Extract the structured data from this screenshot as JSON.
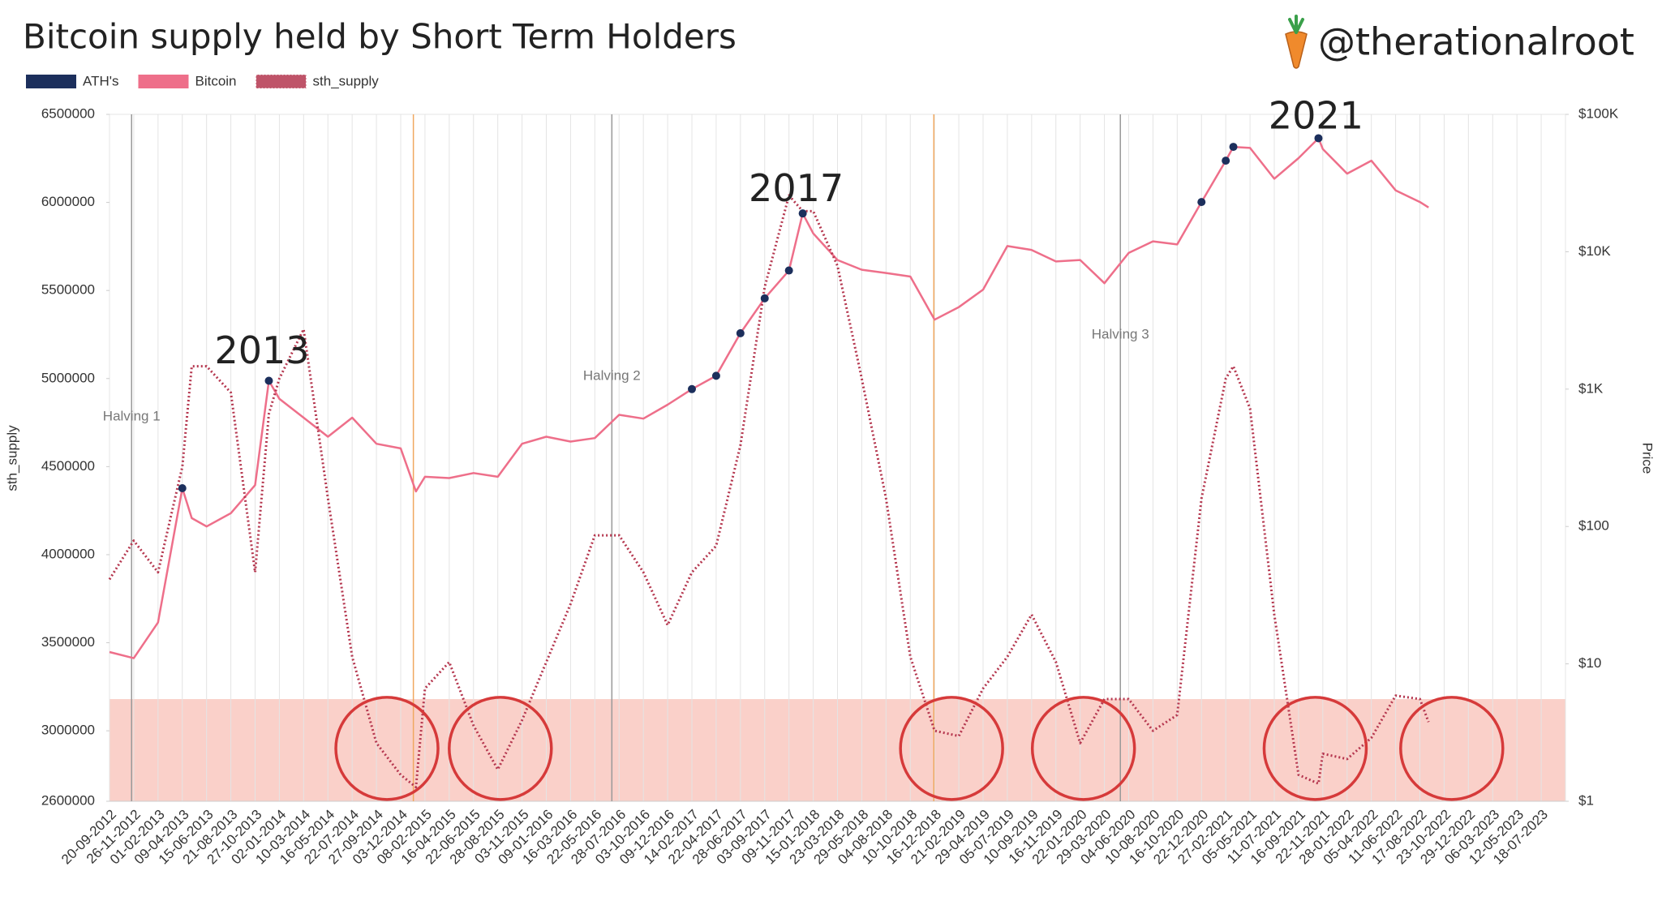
{
  "chart_data": {
    "type": "line",
    "title": "Bitcoin supply held by Short Term Holders",
    "brand": "@therationalroot",
    "y_label": "sth_supply",
    "y2_label": "Price",
    "xlim": [
      "2012-09-20",
      "2023-09-23"
    ],
    "xticks": [
      {
        "value": "2012-09-20",
        "label": "20-09-2012"
      },
      {
        "value": "2012-11-26",
        "label": "26-11-2012"
      },
      {
        "value": "2013-02-01",
        "label": "01-02-2013"
      },
      {
        "value": "2013-04-09",
        "label": "09-04-2013"
      },
      {
        "value": "2013-06-15",
        "label": "15-06-2013"
      },
      {
        "value": "2013-08-21",
        "label": "21-08-2013"
      },
      {
        "value": "2013-10-27",
        "label": "27-10-2013"
      },
      {
        "value": "2014-01-02",
        "label": "02-01-2014"
      },
      {
        "value": "2014-03-10",
        "label": "10-03-2014"
      },
      {
        "value": "2014-05-16",
        "label": "16-05-2014"
      },
      {
        "value": "2014-07-22",
        "label": "22-07-2014"
      },
      {
        "value": "2014-09-27",
        "label": "27-09-2014"
      },
      {
        "value": "2014-12-03",
        "label": "03-12-2014"
      },
      {
        "value": "2015-02-08",
        "label": "08-02-2015"
      },
      {
        "value": "2015-04-16",
        "label": "16-04-2015"
      },
      {
        "value": "2015-06-22",
        "label": "22-06-2015"
      },
      {
        "value": "2015-08-28",
        "label": "28-08-2015"
      },
      {
        "value": "2015-11-03",
        "label": "03-11-2015"
      },
      {
        "value": "2016-01-09",
        "label": "09-01-2016"
      },
      {
        "value": "2016-03-16",
        "label": "16-03-2016"
      },
      {
        "value": "2016-05-22",
        "label": "22-05-2016"
      },
      {
        "value": "2016-07-28",
        "label": "28-07-2016"
      },
      {
        "value": "2016-10-03",
        "label": "03-10-2016"
      },
      {
        "value": "2016-12-09",
        "label": "09-12-2016"
      },
      {
        "value": "2017-02-14",
        "label": "14-02-2017"
      },
      {
        "value": "2017-04-22",
        "label": "22-04-2017"
      },
      {
        "value": "2017-06-28",
        "label": "28-06-2017"
      },
      {
        "value": "2017-09-03",
        "label": "03-09-2017"
      },
      {
        "value": "2017-11-09",
        "label": "09-11-2017"
      },
      {
        "value": "2018-01-15",
        "label": "15-01-2018"
      },
      {
        "value": "2018-03-23",
        "label": "23-03-2018"
      },
      {
        "value": "2018-05-29",
        "label": "29-05-2018"
      },
      {
        "value": "2018-08-04",
        "label": "04-08-2018"
      },
      {
        "value": "2018-10-10",
        "label": "10-10-2018"
      },
      {
        "value": "2018-12-16",
        "label": "16-12-2018"
      },
      {
        "value": "2019-02-21",
        "label": "21-02-2019"
      },
      {
        "value": "2019-04-29",
        "label": "29-04-2019"
      },
      {
        "value": "2019-07-05",
        "label": "05-07-2019"
      },
      {
        "value": "2019-09-10",
        "label": "10-09-2019"
      },
      {
        "value": "2019-11-16",
        "label": "16-11-2019"
      },
      {
        "value": "2020-01-22",
        "label": "22-01-2020"
      },
      {
        "value": "2020-03-29",
        "label": "29-03-2020"
      },
      {
        "value": "2020-06-04",
        "label": "04-06-2020"
      },
      {
        "value": "2020-08-10",
        "label": "10-08-2020"
      },
      {
        "value": "2020-10-16",
        "label": "16-10-2020"
      },
      {
        "value": "2020-12-22",
        "label": "22-12-2020"
      },
      {
        "value": "2021-02-27",
        "label": "27-02-2021"
      },
      {
        "value": "2021-05-05",
        "label": "05-05-2021"
      },
      {
        "value": "2021-07-11",
        "label": "11-07-2021"
      },
      {
        "value": "2021-09-16",
        "label": "16-09-2021"
      },
      {
        "value": "2021-11-22",
        "label": "22-11-2021"
      },
      {
        "value": "2022-01-28",
        "label": "28-01-2022"
      },
      {
        "value": "2022-04-05",
        "label": "05-04-2022"
      },
      {
        "value": "2022-06-11",
        "label": "11-06-2022"
      },
      {
        "value": "2022-08-17",
        "label": "17-08-2022"
      },
      {
        "value": "2022-10-23",
        "label": "23-10-2022"
      },
      {
        "value": "2022-12-29",
        "label": "29-12-2022"
      },
      {
        "value": "2023-03-06",
        "label": "06-03-2023"
      },
      {
        "value": "2023-05-12",
        "label": "12-05-2023"
      },
      {
        "value": "2023-07-18",
        "label": "18-07-2023"
      }
    ],
    "ylim": [
      2600000,
      6500000
    ],
    "yticks": [
      2600000,
      3000000,
      3500000,
      4000000,
      4500000,
      5000000,
      5500000,
      6000000,
      6500000
    ],
    "y2lim": [
      1,
      100000
    ],
    "y2log": true,
    "y2ticks": [
      {
        "value": 1,
        "label": "$1"
      },
      {
        "value": 10,
        "label": "$10"
      },
      {
        "value": 100,
        "label": "$100"
      },
      {
        "value": 1000,
        "label": "$1K"
      },
      {
        "value": 10000,
        "label": "$10K"
      },
      {
        "value": 100000,
        "label": "$100K"
      }
    ],
    "grid": "x",
    "x": [
      "2012-09-20",
      "2012-11-26",
      "2013-02-01",
      "2013-04-09",
      "2013-05-05",
      "2013-06-15",
      "2013-08-21",
      "2013-10-27",
      "2013-12-04",
      "2014-01-02",
      "2014-03-10",
      "2014-05-16",
      "2014-07-22",
      "2014-09-27",
      "2014-12-03",
      "2015-01-14",
      "2015-02-08",
      "2015-04-16",
      "2015-06-22",
      "2015-08-28",
      "2015-11-03",
      "2016-01-09",
      "2016-03-16",
      "2016-05-22",
      "2016-07-28",
      "2016-10-03",
      "2016-12-09",
      "2017-02-14",
      "2017-04-22",
      "2017-06-28",
      "2017-09-03",
      "2017-11-09",
      "2017-12-17",
      "2018-01-15",
      "2018-03-23",
      "2018-05-29",
      "2018-08-04",
      "2018-10-10",
      "2018-12-16",
      "2019-02-21",
      "2019-04-29",
      "2019-07-05",
      "2019-09-10",
      "2019-11-16",
      "2020-01-22",
      "2020-03-29",
      "2020-06-04",
      "2020-08-10",
      "2020-10-16",
      "2020-12-22",
      "2021-02-27",
      "2021-03-20",
      "2021-05-05",
      "2021-07-11",
      "2021-09-16",
      "2021-11-10",
      "2021-11-22",
      "2022-01-28",
      "2022-04-05",
      "2022-06-11",
      "2022-08-17",
      "2022-09-10"
    ],
    "series": [
      {
        "name": "ATH's",
        "color": "#1c2f5c",
        "axis": "y2",
        "style": "markers",
        "values": [
          null,
          null,
          null,
          190,
          null,
          null,
          null,
          null,
          1150,
          null,
          null,
          null,
          null,
          null,
          null,
          null,
          null,
          null,
          null,
          null,
          null,
          null,
          null,
          null,
          null,
          null,
          null,
          1000,
          1250,
          2550,
          4580,
          7300,
          19000,
          null,
          null,
          null,
          null,
          null,
          null,
          null,
          null,
          null,
          null,
          null,
          null,
          null,
          null,
          null,
          null,
          23000,
          46000,
          58000,
          null,
          null,
          null,
          67000,
          null,
          null,
          null,
          null,
          null,
          null
        ]
      },
      {
        "name": "Bitcoin",
        "color": "#ee6f8a",
        "axis": "y2",
        "style": "solid",
        "values": [
          12.2,
          11,
          20,
          190,
          115,
          100,
          125,
          200,
          1150,
          850,
          620,
          450,
          620,
          400,
          370,
          180,
          230,
          225,
          245,
          230,
          400,
          450,
          415,
          440,
          650,
          610,
          770,
          1000,
          1250,
          2550,
          4580,
          7300,
          19000,
          13600,
          8700,
          7400,
          7000,
          6600,
          3200,
          3950,
          5300,
          11000,
          10300,
          8500,
          8700,
          5900,
          9800,
          11900,
          11300,
          23000,
          46000,
          58000,
          57000,
          34000,
          48000,
          67000,
          56000,
          37000,
          46000,
          28000,
          23000,
          21000
        ]
      },
      {
        "name": "sth_supply",
        "color": "#b5374f",
        "style": "dotted",
        "values": [
          3860000,
          4080000,
          3900000,
          4500000,
          5070000,
          5070000,
          4920000,
          3900000,
          4800000,
          5000000,
          5280000,
          4320000,
          3420000,
          2930000,
          2750000,
          2680000,
          3240000,
          3390000,
          3030000,
          2780000,
          3060000,
          3390000,
          3720000,
          4110000,
          4110000,
          3900000,
          3600000,
          3900000,
          4050000,
          4620000,
          5520000,
          6040000,
          5950000,
          5950000,
          5640000,
          5000000,
          4320000,
          3420000,
          3000000,
          2970000,
          3240000,
          3420000,
          3660000,
          3390000,
          2930000,
          3180000,
          3180000,
          3000000,
          3090000,
          4320000,
          5000000,
          5070000,
          4830000,
          3660000,
          2750000,
          2700000,
          2870000,
          2840000,
          2960000,
          3200000,
          3180000,
          3050000
        ]
      }
    ],
    "vlines": [
      {
        "x": "2012-11-20",
        "color": "#999999",
        "label": "Halving 1",
        "label_y": 4783000
      },
      {
        "x": "2015-01-07",
        "color": "#f0a860"
      },
      {
        "x": "2016-07-08",
        "color": "#999999",
        "label": "Halving 2",
        "label_y": 5012000
      },
      {
        "x": "2018-12-14",
        "color": "#f0a860"
      },
      {
        "x": "2020-05-12",
        "color": "#999999",
        "label": "Halving 3",
        "label_y": 5247000
      }
    ],
    "annotations": [
      {
        "text": "2013",
        "x": "2013-11-15",
        "y": 5145000
      },
      {
        "text": "2017",
        "x": "2017-11-29",
        "y": 6066000
      },
      {
        "text": "2021",
        "x": "2021-11-03",
        "y": 6476000
      }
    ],
    "highlight": {
      "range": [
        2600000,
        3180000
      ],
      "color": "#f9c8bf"
    },
    "circles": {
      "x": [
        "2014-10-26",
        "2015-09-04",
        "2019-02-01",
        "2020-01-31",
        "2021-11-01",
        "2022-11-13"
      ],
      "y": 2900000,
      "color": "#d63a3a"
    }
  }
}
